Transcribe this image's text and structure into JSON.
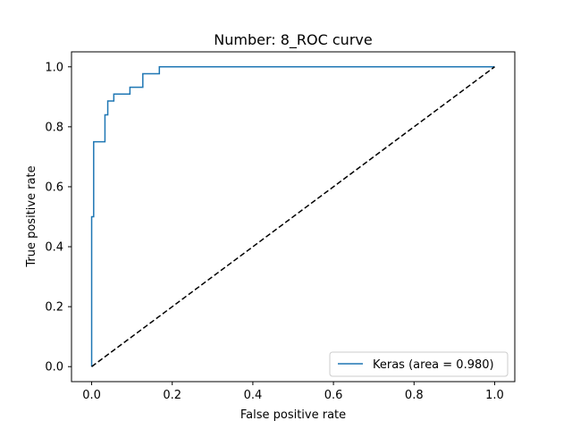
{
  "chart_data": {
    "type": "line",
    "title": "Number:  8_ROC curve",
    "xlabel": "False positive rate",
    "ylabel": "True positive rate",
    "xlim": [
      -0.05,
      1.05
    ],
    "ylim": [
      -0.05,
      1.05
    ],
    "xticks": [
      0.0,
      0.2,
      0.4,
      0.6,
      0.8,
      1.0
    ],
    "yticks": [
      0.0,
      0.2,
      0.4,
      0.6,
      0.8,
      1.0
    ],
    "xtick_labels": [
      "0.0",
      "0.2",
      "0.4",
      "0.6",
      "0.8",
      "1.0"
    ],
    "ytick_labels": [
      "0.0",
      "0.2",
      "0.4",
      "0.6",
      "0.8",
      "1.0"
    ],
    "grid": false,
    "legend_position": "lower-right",
    "series": [
      {
        "name": "Keras (area = 0.980)",
        "color": "#1f77b4",
        "style": "solid",
        "x": [
          0.0,
          0.0,
          0.005,
          0.005,
          0.033,
          0.033,
          0.04,
          0.04,
          0.055,
          0.055,
          0.095,
          0.095,
          0.127,
          0.127,
          0.168,
          0.168,
          1.0
        ],
        "y": [
          0.0,
          0.5,
          0.5,
          0.75,
          0.75,
          0.84,
          0.84,
          0.886,
          0.886,
          0.909,
          0.909,
          0.932,
          0.932,
          0.977,
          0.977,
          1.0,
          1.0
        ]
      },
      {
        "color": "#000000",
        "style": "dashed",
        "x": [
          0.0,
          1.0
        ],
        "y": [
          0.0,
          1.0
        ]
      }
    ]
  }
}
